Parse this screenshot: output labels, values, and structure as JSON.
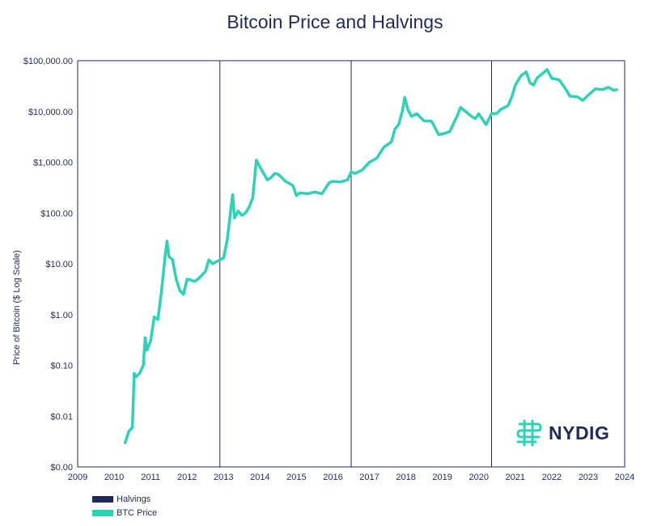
{
  "title": "Bitcoin Price and Halvings",
  "colors": {
    "price": "#2ed3b7",
    "halving": "#1f2a5a",
    "text": "#1f2a5a"
  },
  "legend": {
    "halvings_label": "Halvings",
    "btc_label": "BTC Price"
  },
  "logo": {
    "text": "NYDIG",
    "icon": "nydig-logo-icon"
  },
  "chart_data": {
    "type": "line",
    "title": "Bitcoin Price and Halvings",
    "xlabel": "",
    "ylabel": "Price of Bitcoin ($ Log Scale)",
    "y_scale": "log",
    "ylim": [
      0.001,
      100000
    ],
    "xlim": [
      2009,
      2024
    ],
    "y_tick_labels": [
      "$0.00",
      "$0.01",
      "$0.10",
      "$1.00",
      "$10.00",
      "$100.00",
      "$1,000.00",
      "$10,000.00",
      "$100,000.00"
    ],
    "y_tick_values": [
      0.001,
      0.01,
      0.1,
      1,
      10,
      100,
      1000,
      10000,
      100000
    ],
    "x_tick_labels": [
      "2009",
      "2010",
      "2011",
      "2012",
      "2013",
      "2014",
      "2015",
      "2016",
      "2017",
      "2018",
      "2019",
      "2020",
      "2021",
      "2022",
      "2023",
      "2024"
    ],
    "x_tick_values": [
      2009,
      2010,
      2011,
      2012,
      2013,
      2014,
      2015,
      2016,
      2017,
      2018,
      2019,
      2020,
      2021,
      2022,
      2023,
      2024
    ],
    "halvings": [
      2012.9,
      2016.5,
      2020.35
    ],
    "series": [
      {
        "name": "BTC Price",
        "points": [
          [
            2010.3,
            0.003
          ],
          [
            2010.4,
            0.005
          ],
          [
            2010.5,
            0.006
          ],
          [
            2010.55,
            0.07
          ],
          [
            2010.6,
            0.06
          ],
          [
            2010.7,
            0.07
          ],
          [
            2010.8,
            0.1
          ],
          [
            2010.85,
            0.35
          ],
          [
            2010.9,
            0.2
          ],
          [
            2011.0,
            0.3
          ],
          [
            2011.1,
            0.9
          ],
          [
            2011.2,
            0.8
          ],
          [
            2011.3,
            3
          ],
          [
            2011.4,
            15
          ],
          [
            2011.45,
            28
          ],
          [
            2011.5,
            14
          ],
          [
            2011.6,
            12
          ],
          [
            2011.7,
            5
          ],
          [
            2011.8,
            3
          ],
          [
            2011.9,
            2.5
          ],
          [
            2012.0,
            5
          ],
          [
            2012.1,
            4.8
          ],
          [
            2012.2,
            4.5
          ],
          [
            2012.3,
            5
          ],
          [
            2012.5,
            7
          ],
          [
            2012.6,
            12
          ],
          [
            2012.7,
            10
          ],
          [
            2012.9,
            12
          ],
          [
            2013.0,
            13
          ],
          [
            2013.1,
            30
          ],
          [
            2013.2,
            120
          ],
          [
            2013.25,
            230
          ],
          [
            2013.3,
            80
          ],
          [
            2013.4,
            110
          ],
          [
            2013.5,
            90
          ],
          [
            2013.6,
            100
          ],
          [
            2013.7,
            130
          ],
          [
            2013.8,
            200
          ],
          [
            2013.9,
            1100
          ],
          [
            2014.0,
            800
          ],
          [
            2014.1,
            600
          ],
          [
            2014.2,
            450
          ],
          [
            2014.3,
            500
          ],
          [
            2014.4,
            600
          ],
          [
            2014.5,
            580
          ],
          [
            2014.7,
            420
          ],
          [
            2014.9,
            350
          ],
          [
            2015.0,
            220
          ],
          [
            2015.1,
            250
          ],
          [
            2015.3,
            240
          ],
          [
            2015.5,
            260
          ],
          [
            2015.7,
            240
          ],
          [
            2015.9,
            400
          ],
          [
            2016.0,
            420
          ],
          [
            2016.2,
            410
          ],
          [
            2016.4,
            450
          ],
          [
            2016.5,
            650
          ],
          [
            2016.6,
            600
          ],
          [
            2016.8,
            700
          ],
          [
            2017.0,
            1000
          ],
          [
            2017.2,
            1200
          ],
          [
            2017.4,
            2000
          ],
          [
            2017.6,
            2500
          ],
          [
            2017.7,
            4500
          ],
          [
            2017.8,
            5500
          ],
          [
            2017.9,
            10000
          ],
          [
            2017.97,
            19000
          ],
          [
            2018.05,
            11000
          ],
          [
            2018.15,
            8000
          ],
          [
            2018.3,
            9000
          ],
          [
            2018.5,
            6500
          ],
          [
            2018.7,
            6500
          ],
          [
            2018.9,
            3500
          ],
          [
            2019.0,
            3600
          ],
          [
            2019.2,
            4000
          ],
          [
            2019.4,
            8000
          ],
          [
            2019.5,
            12000
          ],
          [
            2019.6,
            10500
          ],
          [
            2019.8,
            8000
          ],
          [
            2019.9,
            7200
          ],
          [
            2020.0,
            9000
          ],
          [
            2020.2,
            5500
          ],
          [
            2020.35,
            9000
          ],
          [
            2020.5,
            9200
          ],
          [
            2020.6,
            11000
          ],
          [
            2020.8,
            13000
          ],
          [
            2020.9,
            19000
          ],
          [
            2021.0,
            33000
          ],
          [
            2021.15,
            50000
          ],
          [
            2021.3,
            60000
          ],
          [
            2021.4,
            37000
          ],
          [
            2021.5,
            33000
          ],
          [
            2021.6,
            46000
          ],
          [
            2021.8,
            60000
          ],
          [
            2021.87,
            67000
          ],
          [
            2022.0,
            45000
          ],
          [
            2022.2,
            42000
          ],
          [
            2022.35,
            30000
          ],
          [
            2022.5,
            20000
          ],
          [
            2022.7,
            19500
          ],
          [
            2022.85,
            16500
          ],
          [
            2023.0,
            21000
          ],
          [
            2023.2,
            28000
          ],
          [
            2023.4,
            27000
          ],
          [
            2023.55,
            30000
          ],
          [
            2023.7,
            26000
          ],
          [
            2023.78,
            27000
          ]
        ]
      }
    ]
  }
}
